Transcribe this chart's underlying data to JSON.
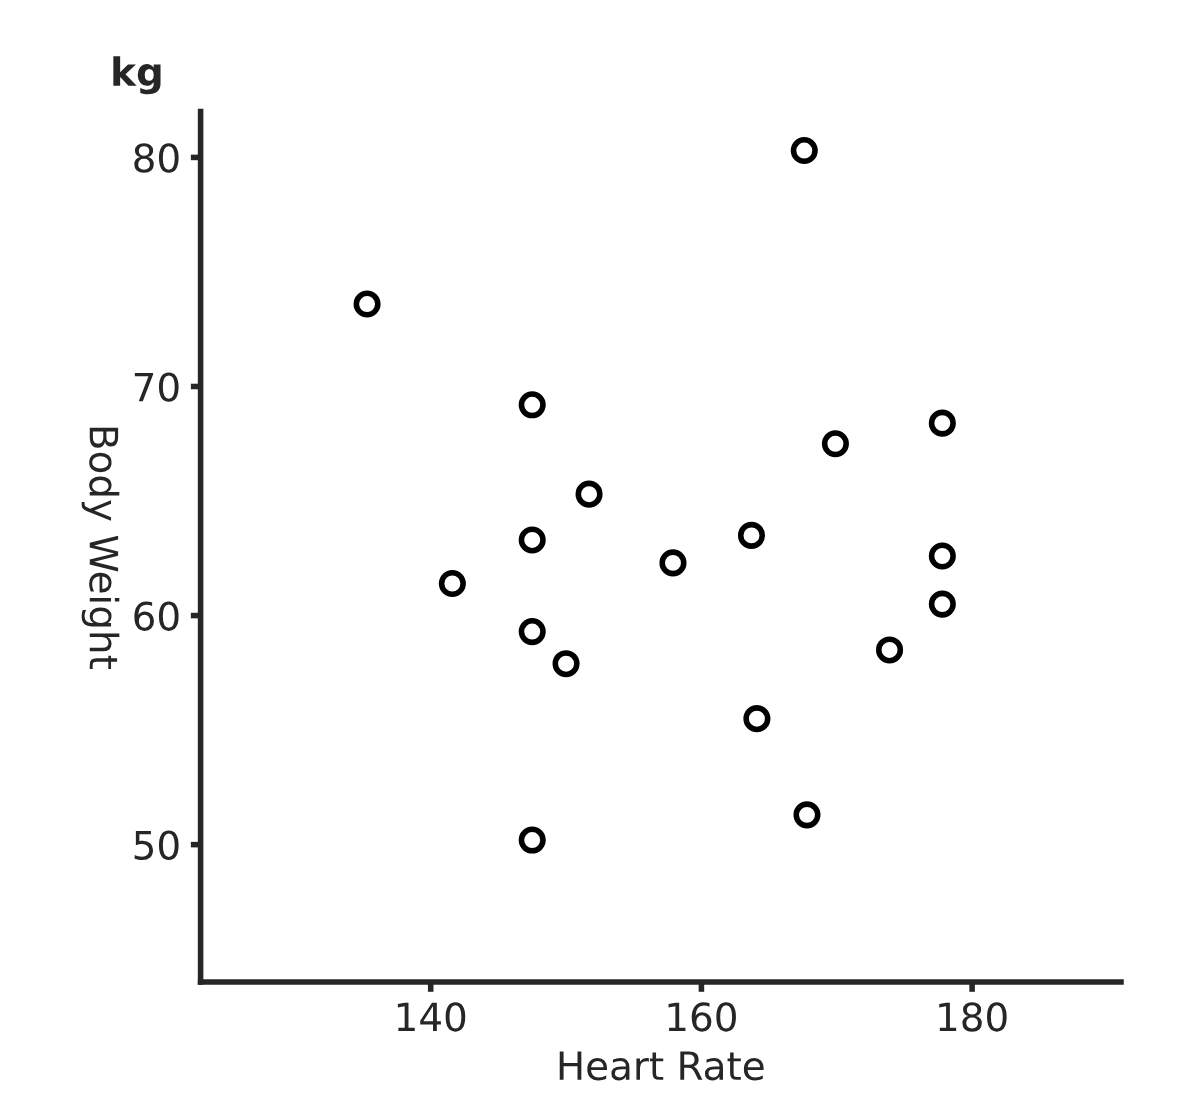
{
  "chart_data": {
    "type": "scatter",
    "xlabel": "Heart Rate",
    "ylabel": "Body Weight",
    "annotations": [
      "kg"
    ],
    "x": [
      135.3,
      167.6,
      147.5,
      147.5,
      147.5,
      147.5,
      141.6,
      151.7,
      150,
      157.9,
      163.7,
      164.1,
      167.8,
      169.9,
      173.9,
      177.8,
      177.8,
      177.8
    ],
    "series": [
      {
        "color": "#000000",
        "values": [
          73.6,
          80.3,
          69.2,
          63.3,
          59.3,
          50.2,
          61.4,
          65.3,
          57.9,
          62.3,
          63.5,
          55.5,
          51.3,
          67.5,
          58.5,
          68.4,
          62.6,
          60.5
        ]
      }
    ],
    "xlim": [
      123,
      191
    ],
    "ylim": [
      44,
      82
    ],
    "xticks": [
      140,
      160,
      180
    ],
    "yticks": [
      50,
      60,
      70,
      80
    ],
    "grid": false,
    "legend": false,
    "marker": "circle"
  }
}
